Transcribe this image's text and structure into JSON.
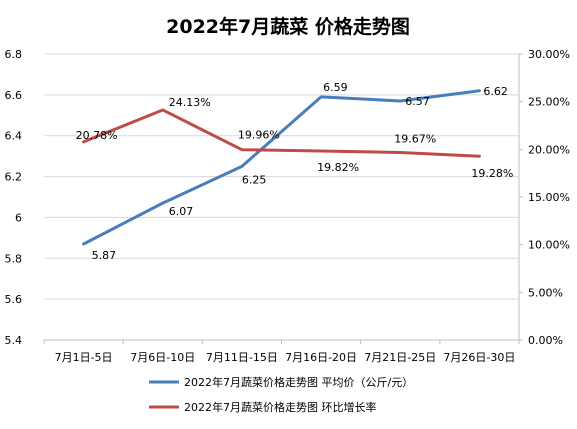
{
  "chart_data": {
    "type": "line",
    "title": "2022年7月蔬菜 价格走势图",
    "categories": [
      "7月1日-5日",
      "7月6日-10日",
      "7月11日-15日",
      "7月16日-20日",
      "7月21日-25日",
      "7月26日-30日"
    ],
    "y_left": {
      "lim": [
        5.4,
        6.8
      ],
      "ticks": [
        "5.4",
        "5.6",
        "5.8",
        "6",
        "6.2",
        "6.4",
        "6.6",
        "6.8"
      ]
    },
    "y_right": {
      "lim": [
        0,
        30
      ],
      "ticks": [
        "0.00%",
        "5.00%",
        "10.00%",
        "15.00%",
        "20.00%",
        "25.00%",
        "30.00%"
      ]
    },
    "grid": true,
    "legend_position": "bottom",
    "series": [
      {
        "name": "2022年7月蔬菜价格走势图 平均价（公斤/元）",
        "axis": "left",
        "color": "#4a7ebb",
        "values": [
          5.87,
          6.07,
          6.25,
          6.59,
          6.57,
          6.62
        ],
        "labels": [
          "5.87",
          "6.07",
          "6.25",
          "6.59",
          "6.57",
          "6.62"
        ]
      },
      {
        "name": "2022年7月蔬菜价格走势图 环比增长率",
        "axis": "right",
        "color": "#be4b48",
        "values": [
          20.78,
          24.13,
          19.96,
          19.82,
          19.67,
          19.28
        ],
        "labels": [
          "20.78%",
          "24.13%",
          "19.96%",
          "19.82%",
          "19.67%",
          "19.28%"
        ]
      }
    ]
  }
}
